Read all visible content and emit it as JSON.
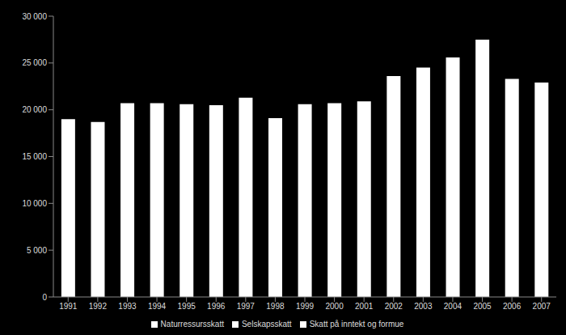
{
  "chart_data": {
    "type": "bar",
    "stacked": true,
    "legend": "bottom",
    "grid": false,
    "categories": [
      "1991",
      "1992",
      "1993",
      "1994",
      "1995",
      "1996",
      "1997",
      "1998",
      "1999",
      "2000",
      "2001",
      "2002",
      "2003",
      "2004",
      "2005",
      "2006",
      "2007"
    ],
    "series": [
      {
        "name": "Skatt på inntekt og formue",
        "color": "#ffffff",
        "values": [
          19000,
          18700,
          20700,
          20700,
          20600,
          20500,
          21300,
          19100,
          20600,
          20700,
          20900,
          23600,
          24500,
          25600,
          27500,
          23300,
          22900
        ]
      },
      {
        "name": "Selskapsskatt",
        "color": "#ffffff",
        "values": [
          null,
          null,
          null,
          null,
          null,
          null,
          null,
          null,
          null,
          null,
          null,
          null,
          null,
          null,
          null,
          null,
          null
        ]
      },
      {
        "name": "Naturressursskatt",
        "color": "#ffffff",
        "values": [
          null,
          null,
          null,
          null,
          null,
          null,
          null,
          null,
          null,
          null,
          null,
          null,
          null,
          null,
          null,
          null,
          null
        ]
      }
    ],
    "ylim": [
      0,
      30000
    ],
    "yticks": [
      0,
      {
        "value": 5000,
        "label": "5 000"
      },
      {
        "value": 10000,
        "label": "10 000"
      },
      {
        "value": 15000,
        "label": "15 000"
      },
      {
        "value": 20000,
        "label": "20 000"
      },
      {
        "value": 25000,
        "label": "25 000"
      },
      {
        "value": 30000,
        "label": "30 000"
      }
    ]
  }
}
